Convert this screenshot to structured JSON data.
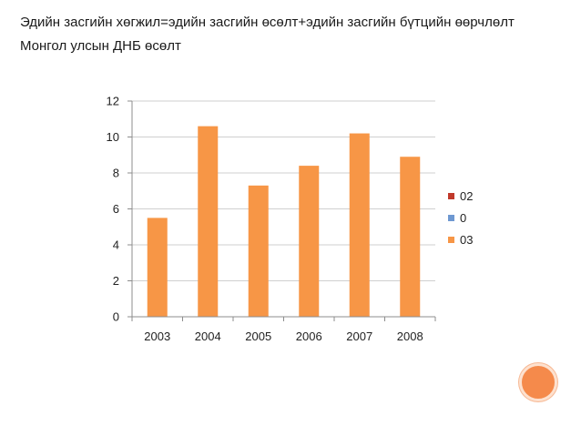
{
  "slide": {
    "line1": "Эдийн засгийн хөгжил=эдийн засгийн өсөлт+эдийн засгийн бүтцийн өөрчлөлт",
    "line2": "Монгол улсын ДНБ өсөлт"
  },
  "colors": {
    "bar": "#f79646",
    "series_02": "#c0392b",
    "series_0": "#6e98d1",
    "series_03": "#f79646",
    "axis": "#8c8c8c",
    "grid": "#cfcfcf",
    "decor_circle": "#f58a4b"
  },
  "chart_data": {
    "type": "bar",
    "categories": [
      "2003",
      "2004",
      "2005",
      "2006",
      "2007",
      "2008"
    ],
    "series": [
      {
        "name": "02",
        "values": [
          null,
          null,
          null,
          null,
          null,
          null
        ],
        "color": "#c0392b"
      },
      {
        "name": "0",
        "values": [
          null,
          null,
          null,
          null,
          null,
          null
        ],
        "color": "#6e98d1"
      },
      {
        "name": "03",
        "values": [
          5.5,
          10.6,
          7.3,
          8.4,
          10.2,
          8.9
        ],
        "color": "#f79646"
      }
    ],
    "title": "",
    "xlabel": "",
    "ylabel": "",
    "ylim": [
      0,
      12
    ],
    "yticks": [
      0,
      2,
      4,
      6,
      8,
      10,
      12
    ],
    "grid": true,
    "legend": "right"
  }
}
